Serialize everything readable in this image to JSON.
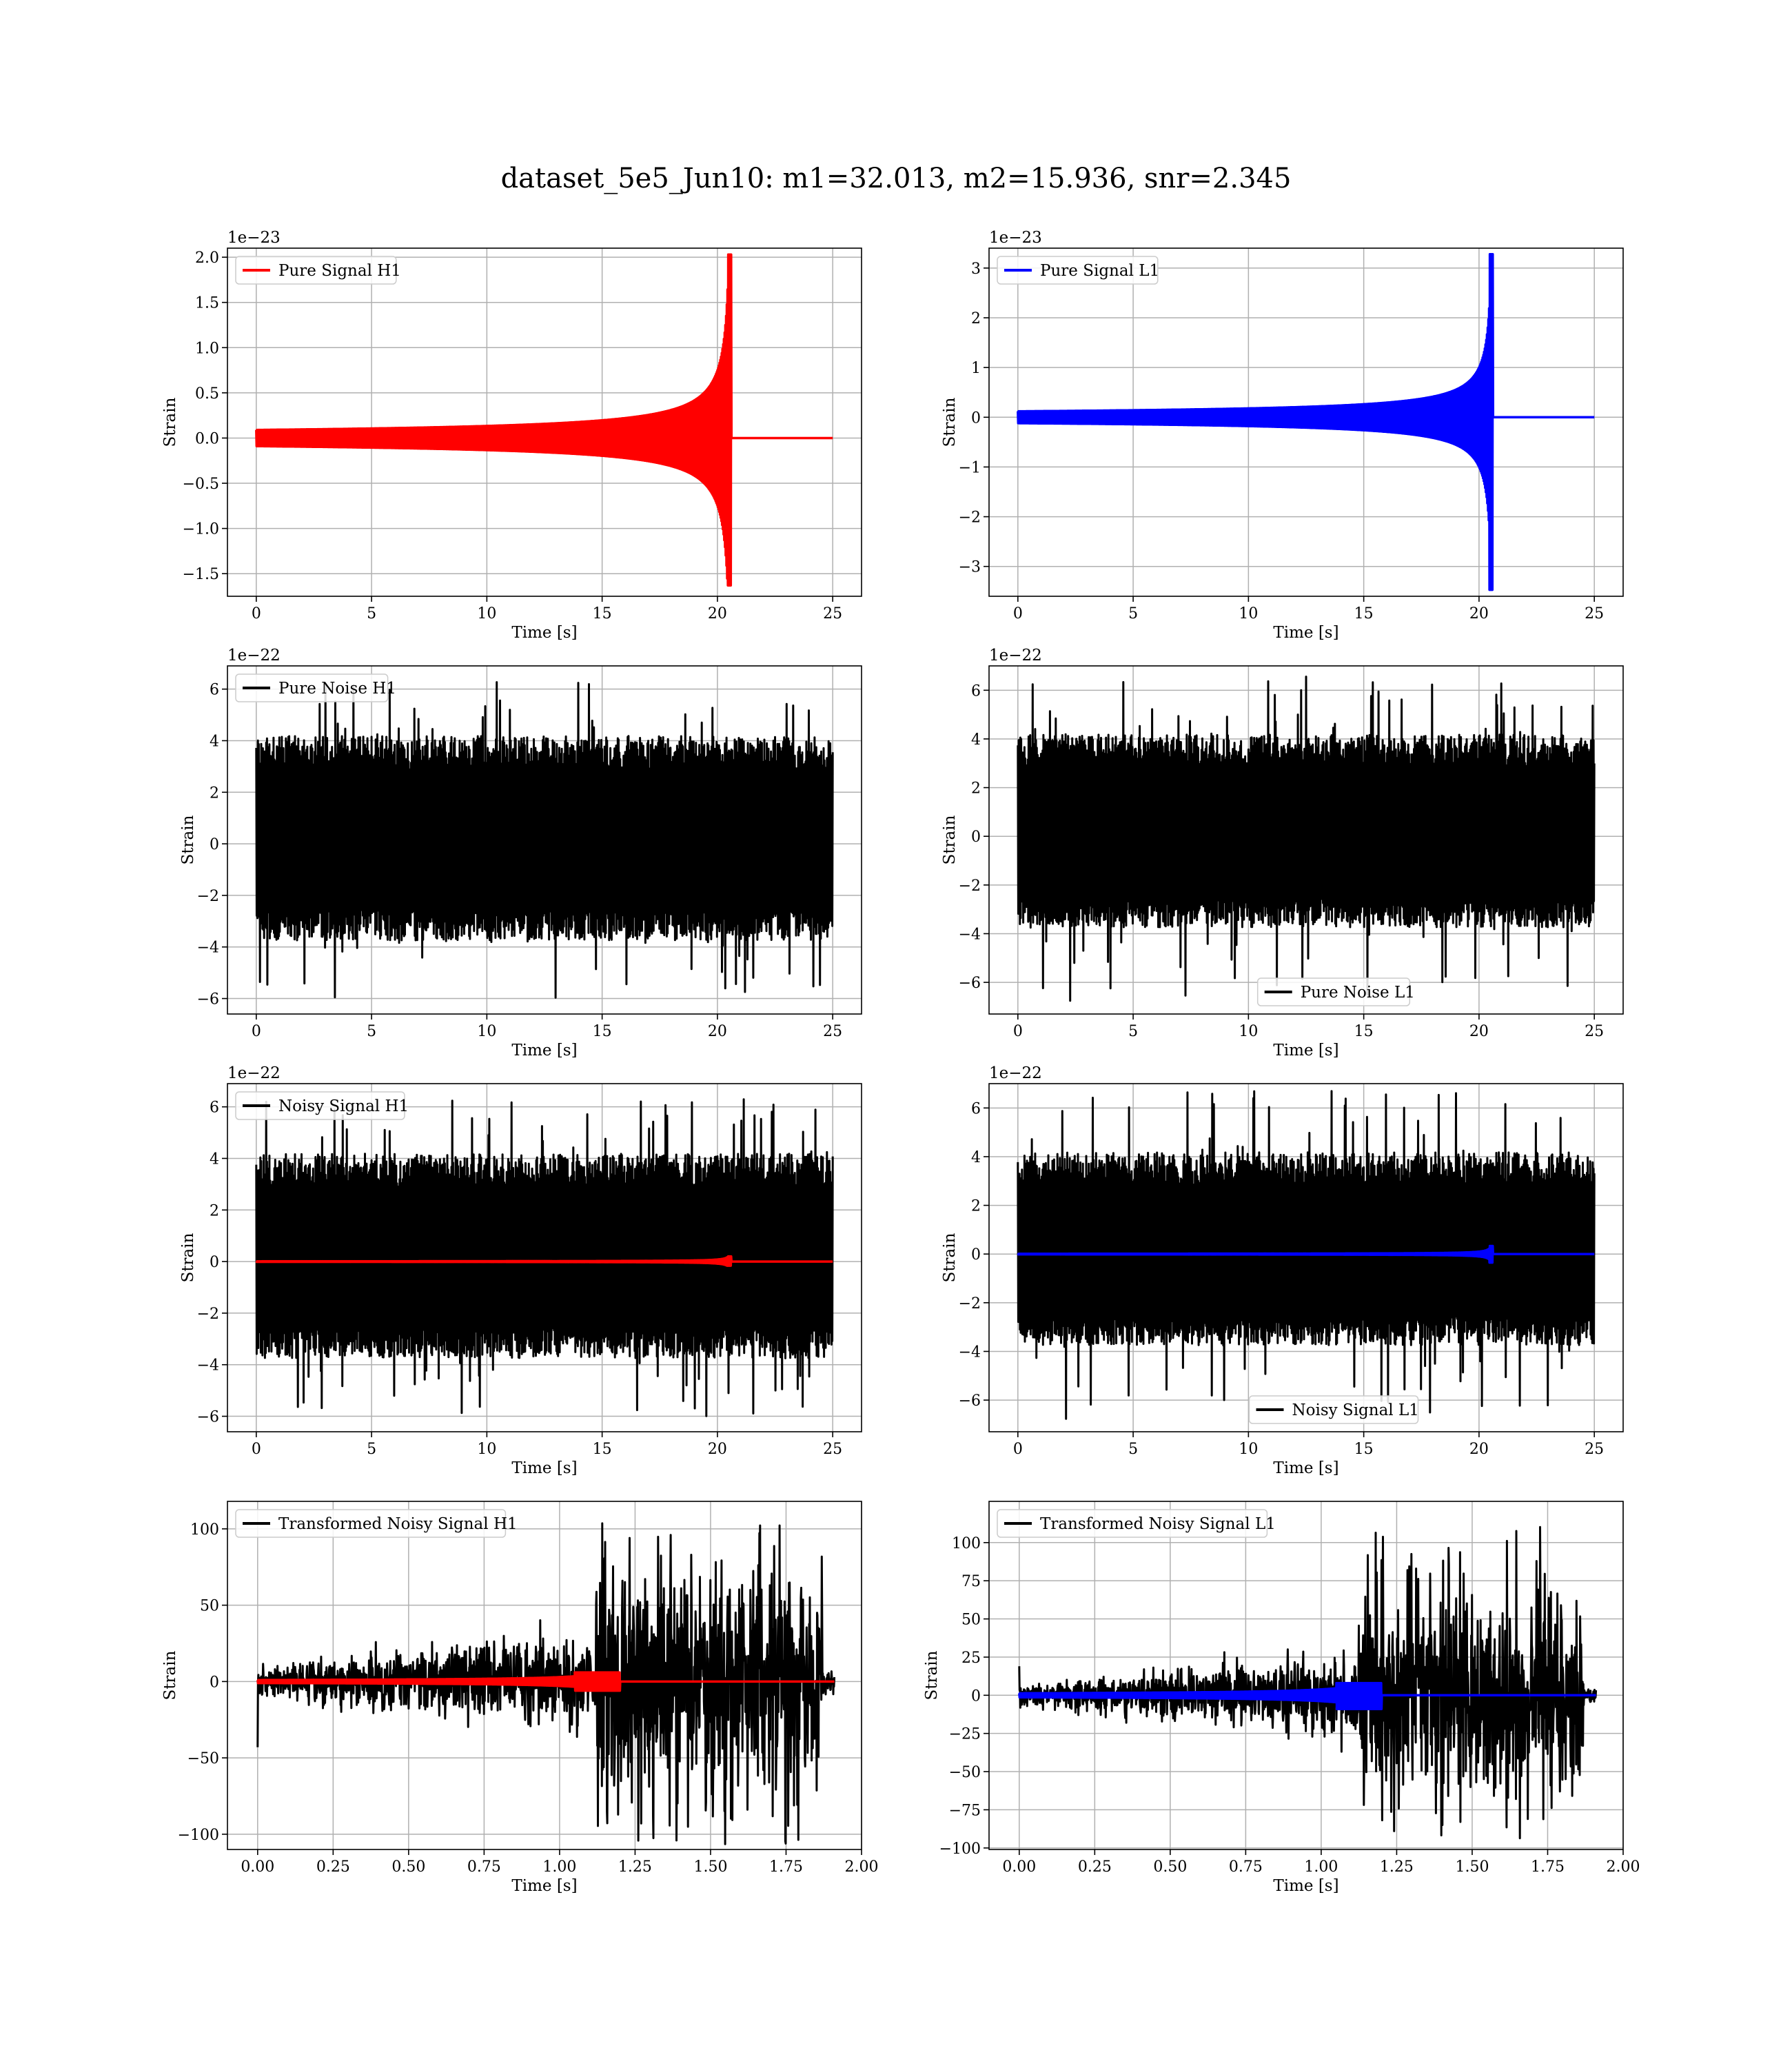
{
  "figure_title": "dataset_5e5_Jun10: m1=32.013, m2=15.936, snr=2.345",
  "colors": {
    "red": "#ff0000",
    "blue": "#0000ff",
    "black": "#000000"
  },
  "chart_data": [
    {
      "type": "line",
      "id": "pure-signal-h1",
      "xlabel": "Time [s]",
      "ylabel": "Strain",
      "offset_text": "1e−23",
      "xlim": [
        -1.25,
        26.25
      ],
      "ylim": [
        -1.75,
        2.1
      ],
      "xticks": [
        0,
        5,
        10,
        15,
        20,
        25
      ],
      "xtick_labels": [
        "0",
        "5",
        "10",
        "15",
        "20",
        "25"
      ],
      "yticks": [
        -1.5,
        -1.0,
        -0.5,
        0.0,
        0.5,
        1.0,
        1.5,
        2.0
      ],
      "ytick_labels": [
        "−1.5",
        "−1.0",
        "−0.5",
        "0.0",
        "0.5",
        "1.0",
        "1.5",
        "2.0"
      ],
      "legend_loc": "upper-left",
      "series": [
        {
          "name": "Pure Signal H1",
          "color": "#ff0000",
          "kind": "chirp",
          "x_start": 0,
          "x_end": 25,
          "merger_time": 20.6,
          "peak_max": 2.03,
          "peak_min": -1.63,
          "pre_merger_envelope": 0.75
        }
      ]
    },
    {
      "type": "line",
      "id": "pure-signal-l1",
      "xlabel": "Time [s]",
      "ylabel": "Strain",
      "offset_text": "1e−23",
      "xlim": [
        -1.25,
        26.25
      ],
      "ylim": [
        -3.6,
        3.4
      ],
      "xticks": [
        0,
        5,
        10,
        15,
        20,
        25
      ],
      "xtick_labels": [
        "0",
        "5",
        "10",
        "15",
        "20",
        "25"
      ],
      "yticks": [
        -3,
        -2,
        -1,
        0,
        1,
        2,
        3
      ],
      "ytick_labels": [
        "−3",
        "−2",
        "−1",
        "0",
        "1",
        "2",
        "3"
      ],
      "legend_loc": "upper-left",
      "series": [
        {
          "name": "Pure Signal L1",
          "color": "#0000ff",
          "kind": "chirp",
          "x_start": 0,
          "x_end": 25,
          "merger_time": 20.6,
          "peak_max": 3.28,
          "peak_min": -3.47,
          "pre_merger_envelope": 1.0
        }
      ]
    },
    {
      "type": "line",
      "id": "pure-noise-h1",
      "xlabel": "Time [s]",
      "ylabel": "Strain",
      "offset_text": "1e−22",
      "xlim": [
        -1.25,
        26.25
      ],
      "ylim": [
        -6.6,
        6.9
      ],
      "xticks": [
        0,
        5,
        10,
        15,
        20,
        25
      ],
      "xtick_labels": [
        "0",
        "5",
        "10",
        "15",
        "20",
        "25"
      ],
      "yticks": [
        -6,
        -4,
        -2,
        0,
        2,
        4,
        6
      ],
      "ytick_labels": [
        "−6",
        "−4",
        "−2",
        "0",
        "2",
        "4",
        "6"
      ],
      "legend_loc": "upper-left",
      "series": [
        {
          "name": "Pure Noise H1",
          "color": "#000000",
          "kind": "noise",
          "x_start": 0,
          "x_end": 25,
          "band_max": 3.8,
          "band_min": -3.4,
          "spike_max": 6.4,
          "spike_min": -6.0
        }
      ]
    },
    {
      "type": "line",
      "id": "pure-noise-l1",
      "xlabel": "Time [s]",
      "ylabel": "Strain",
      "offset_text": "1e−22",
      "xlim": [
        -1.25,
        26.25
      ],
      "ylim": [
        -7.3,
        7.0
      ],
      "xticks": [
        0,
        5,
        10,
        15,
        20,
        25
      ],
      "xtick_labels": [
        "0",
        "5",
        "10",
        "15",
        "20",
        "25"
      ],
      "yticks": [
        -6,
        -4,
        -2,
        0,
        2,
        4,
        6
      ],
      "ytick_labels": [
        "−6",
        "−4",
        "−2",
        "0",
        "2",
        "4",
        "6"
      ],
      "legend_loc": "lower-center",
      "series": [
        {
          "name": "Pure Noise L1",
          "color": "#000000",
          "kind": "noise",
          "x_start": 0,
          "x_end": 25,
          "band_max": 3.8,
          "band_min": -3.4,
          "spike_max": 6.7,
          "spike_min": -6.8
        }
      ]
    },
    {
      "type": "line",
      "id": "noisy-signal-h1",
      "xlabel": "Time [s]",
      "ylabel": "Strain",
      "offset_text": "1e−22",
      "xlim": [
        -1.25,
        26.25
      ],
      "ylim": [
        -6.6,
        6.9
      ],
      "xticks": [
        0,
        5,
        10,
        15,
        20,
        25
      ],
      "xtick_labels": [
        "0",
        "5",
        "10",
        "15",
        "20",
        "25"
      ],
      "yticks": [
        -6,
        -4,
        -2,
        0,
        2,
        4,
        6
      ],
      "ytick_labels": [
        "−6",
        "−4",
        "−2",
        "0",
        "2",
        "4",
        "6"
      ],
      "legend_loc": "upper-left",
      "series": [
        {
          "name": "Noisy Signal H1",
          "color": "#000000",
          "kind": "noise",
          "x_start": 0,
          "x_end": 25,
          "band_max": 3.8,
          "band_min": -3.4,
          "spike_max": 6.4,
          "spike_min": -6.0
        },
        {
          "color": "#ff0000",
          "kind": "chirp",
          "x_start": 0,
          "x_end": 25,
          "merger_time": 20.6,
          "peak_max": 0.2,
          "peak_min": -0.16,
          "pre_merger_envelope": 0.08
        }
      ]
    },
    {
      "type": "line",
      "id": "noisy-signal-l1",
      "xlabel": "Time [s]",
      "ylabel": "Strain",
      "offset_text": "1e−22",
      "xlim": [
        -1.25,
        26.25
      ],
      "ylim": [
        -7.3,
        7.0
      ],
      "xticks": [
        0,
        5,
        10,
        15,
        20,
        25
      ],
      "xtick_labels": [
        "0",
        "5",
        "10",
        "15",
        "20",
        "25"
      ],
      "yticks": [
        -6,
        -4,
        -2,
        0,
        2,
        4,
        6
      ],
      "ytick_labels": [
        "−6",
        "−4",
        "−2",
        "0",
        "2",
        "4",
        "6"
      ],
      "legend_loc": "lower-center",
      "series": [
        {
          "name": "Noisy Signal L1",
          "color": "#000000",
          "kind": "noise",
          "x_start": 0,
          "x_end": 25,
          "band_max": 3.8,
          "band_min": -3.4,
          "spike_max": 6.7,
          "spike_min": -6.8
        },
        {
          "color": "#0000ff",
          "kind": "chirp",
          "x_start": 0,
          "x_end": 25,
          "merger_time": 20.6,
          "peak_max": 0.33,
          "peak_min": -0.35,
          "pre_merger_envelope": 0.1
        }
      ]
    },
    {
      "type": "line",
      "id": "transformed-noisy-signal-h1",
      "xlabel": "Time [s]",
      "ylabel": "Strain",
      "offset_text": "",
      "xlim": [
        -0.1,
        2.0
      ],
      "ylim": [
        -110,
        118
      ],
      "xticks": [
        0.0,
        0.25,
        0.5,
        0.75,
        1.0,
        1.25,
        1.5,
        1.75,
        2.0
      ],
      "xtick_labels": [
        "0.00",
        "0.25",
        "0.50",
        "0.75",
        "1.00",
        "1.25",
        "1.50",
        "1.75",
        "2.00"
      ],
      "yticks": [
        -100,
        -50,
        0,
        50,
        100
      ],
      "ytick_labels": [
        "−100",
        "−50",
        "0",
        "50",
        "100"
      ],
      "legend_loc": "upper-left",
      "series": [
        {
          "name": "Transformed Noisy Signal H1",
          "color": "#000000",
          "kind": "whitened",
          "x_start": 0,
          "x_end": 1.91,
          "jump_time": 1.12,
          "end_time": 1.87,
          "early_amp": [
            8,
            25
          ],
          "late_amp": 55,
          "spike_max": 105,
          "spike_min": -107,
          "start_spike": -43
        },
        {
          "color": "#ff0000",
          "kind": "chirp",
          "x_start": 0,
          "x_end": 1.91,
          "merger_time": 1.2,
          "peak_max": 6,
          "peak_min": -6,
          "pre_merger_envelope": 1.5
        }
      ]
    },
    {
      "type": "line",
      "id": "transformed-noisy-signal-l1",
      "xlabel": "Time [s]",
      "ylabel": "Strain",
      "offset_text": "",
      "xlim": [
        -0.1,
        2.0
      ],
      "ylim": [
        -101,
        127
      ],
      "xticks": [
        0.0,
        0.25,
        0.5,
        0.75,
        1.0,
        1.25,
        1.5,
        1.75,
        2.0
      ],
      "xtick_labels": [
        "0.00",
        "0.25",
        "0.50",
        "0.75",
        "1.00",
        "1.25",
        "1.50",
        "1.75",
        "2.00"
      ],
      "yticks": [
        -100,
        -75,
        -50,
        -25,
        0,
        25,
        50,
        75,
        100
      ],
      "ytick_labels": [
        "−100",
        "−75",
        "−50",
        "−25",
        "0",
        "25",
        "50",
        "75",
        "100"
      ],
      "legend_loc": "upper-left",
      "series": [
        {
          "name": "Transformed Noisy Signal L1",
          "color": "#000000",
          "kind": "whitened",
          "x_start": 0,
          "x_end": 1.91,
          "jump_time": 1.12,
          "end_time": 1.87,
          "early_amp": [
            6,
            20
          ],
          "late_amp": 50,
          "spike_max": 113,
          "spike_min": -93,
          "start_spike": 19
        },
        {
          "color": "#0000ff",
          "kind": "chirp",
          "x_start": 0,
          "x_end": 1.91,
          "merger_time": 1.2,
          "peak_max": 8,
          "peak_min": -9,
          "pre_merger_envelope": 2
        }
      ]
    }
  ]
}
